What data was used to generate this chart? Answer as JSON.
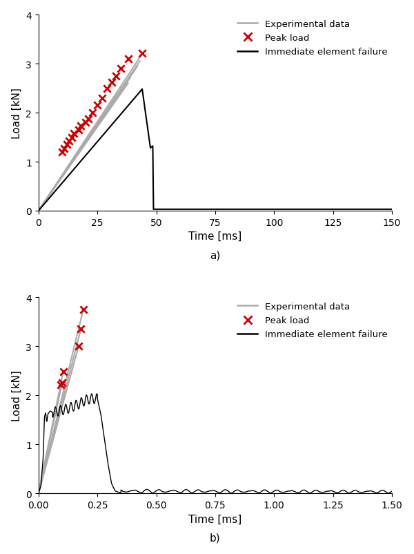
{
  "fig_width": 6.0,
  "fig_height": 8.03,
  "dpi": 100,
  "subplot_a": {
    "xlabel": "Time [ms]",
    "ylabel": "Load [kN]",
    "xlim": [
      0,
      150
    ],
    "ylim": [
      0,
      4
    ],
    "xticks": [
      0,
      25,
      50,
      75,
      100,
      125,
      150
    ],
    "yticks": [
      0,
      1,
      2,
      3,
      4
    ],
    "exp_lines": [
      {
        "x": [
          0,
          38
        ],
        "y": [
          0,
          2.6
        ]
      },
      {
        "x": [
          0,
          39
        ],
        "y": [
          0,
          2.72
        ]
      },
      {
        "x": [
          0,
          40
        ],
        "y": [
          0,
          2.82
        ]
      },
      {
        "x": [
          0,
          41
        ],
        "y": [
          0,
          2.9
        ]
      },
      {
        "x": [
          0,
          42
        ],
        "y": [
          0,
          2.95
        ]
      },
      {
        "x": [
          0,
          43
        ],
        "y": [
          0,
          3.05
        ]
      },
      {
        "x": [
          0,
          44
        ],
        "y": [
          0,
          3.2
        ]
      }
    ],
    "peak_loads_x": [
      10,
      11,
      12,
      13,
      14,
      15,
      17,
      18,
      20,
      21,
      23,
      25,
      27,
      29,
      31,
      33,
      35,
      38,
      44
    ],
    "peak_loads_y": [
      1.2,
      1.27,
      1.35,
      1.42,
      1.5,
      1.58,
      1.65,
      1.73,
      1.8,
      1.88,
      2.0,
      2.15,
      2.3,
      2.5,
      2.62,
      2.75,
      2.9,
      3.1,
      3.22
    ],
    "sim_x": [
      0,
      44,
      44.01,
      47.5,
      47.8,
      48.5,
      48.8,
      50.5,
      50.6,
      150
    ],
    "sim_y": [
      0,
      2.48,
      2.48,
      1.28,
      1.3,
      1.32,
      0.03,
      0.03,
      0.03,
      0.03
    ]
  },
  "subplot_b": {
    "xlabel": "Time [ms]",
    "ylabel": "Load [kN]",
    "xlim": [
      0,
      1.5
    ],
    "ylim": [
      0,
      4
    ],
    "xticks": [
      0.0,
      0.25,
      0.5,
      0.75,
      1.0,
      1.25,
      1.5
    ],
    "yticks": [
      0,
      1,
      2,
      3,
      4
    ],
    "exp_lines": [
      {
        "x": [
          0,
          0.19
        ],
        "y": [
          0,
          3.75
        ]
      },
      {
        "x": [
          0,
          0.18
        ],
        "y": [
          0,
          3.35
        ]
      },
      {
        "x": [
          0,
          0.17
        ],
        "y": [
          0,
          3.0
        ]
      },
      {
        "x": [
          0,
          0.105
        ],
        "y": [
          0,
          2.48
        ]
      },
      {
        "x": [
          0,
          0.1
        ],
        "y": [
          0,
          2.25
        ]
      },
      {
        "x": [
          0,
          0.095
        ],
        "y": [
          0,
          2.22
        ]
      }
    ],
    "peak_loads_x": [
      0.095,
      0.1,
      0.105,
      0.17,
      0.18,
      0.19
    ],
    "peak_loads_y": [
      2.22,
      2.25,
      2.48,
      3.0,
      3.35,
      3.75
    ]
  },
  "colors": {
    "exp_line": "#aaaaaa",
    "peak_load": "#cc0000",
    "sim_line": "#000000"
  },
  "legend": {
    "exp_label": "Experimental data",
    "peak_label": "Peak load",
    "sim_label": "Immediate element failure"
  }
}
